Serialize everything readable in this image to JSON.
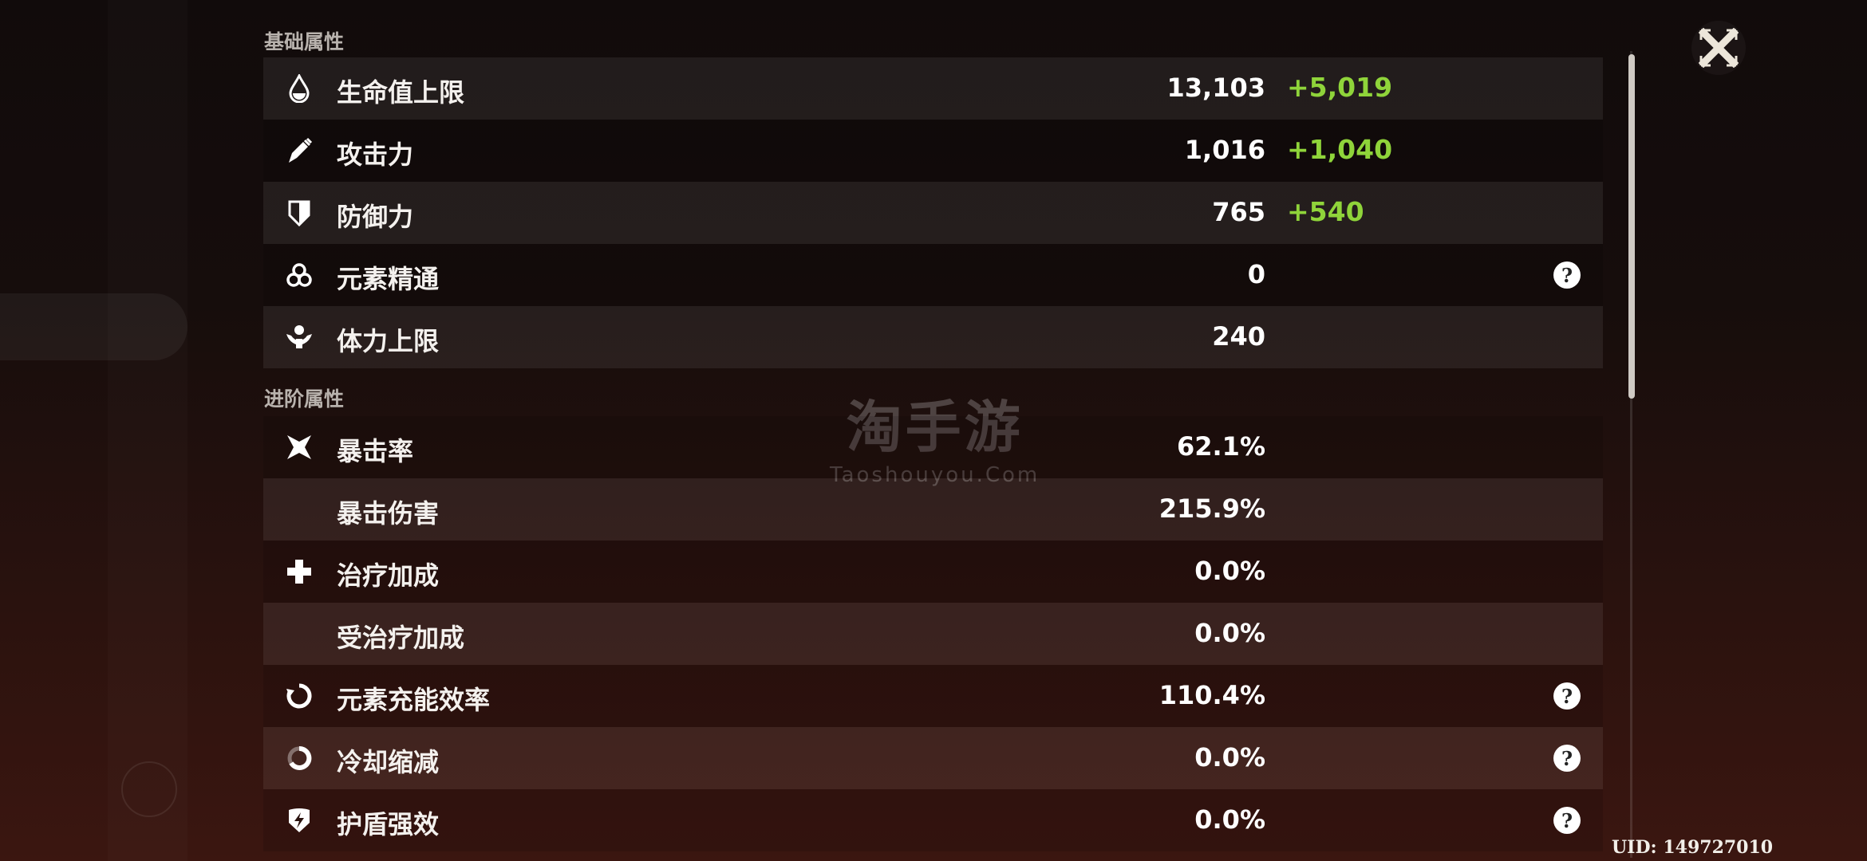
{
  "sections": [
    {
      "title": "基础属性",
      "rows": [
        {
          "icon": "hp-droplet-icon",
          "label": "生命值上限",
          "value": "13,103",
          "bonus": "+5,019",
          "help": false
        },
        {
          "icon": "sword-icon",
          "label": "攻击力",
          "value": "1,016",
          "bonus": "+1,040",
          "help": false
        },
        {
          "icon": "shield-icon",
          "label": "防御力",
          "value": "765",
          "bonus": "+540",
          "help": false
        },
        {
          "icon": "elemental-mastery-icon",
          "label": "元素精通",
          "value": "0",
          "bonus": "",
          "help": true
        },
        {
          "icon": "stamina-icon",
          "label": "体力上限",
          "value": "240",
          "bonus": "",
          "help": false
        }
      ]
    },
    {
      "title": "进阶属性",
      "rows": [
        {
          "icon": "crit-star-icon",
          "label": "暴击率",
          "value": "62.1%",
          "bonus": "",
          "help": false
        },
        {
          "icon": "",
          "label": "暴击伤害",
          "value": "215.9%",
          "bonus": "",
          "help": false
        },
        {
          "icon": "healing-cross-icon",
          "label": "治疗加成",
          "value": "0.0%",
          "bonus": "",
          "help": false
        },
        {
          "icon": "",
          "label": "受治疗加成",
          "value": "0.0%",
          "bonus": "",
          "help": false
        },
        {
          "icon": "energy-recharge-icon",
          "label": "元素充能效率",
          "value": "110.4%",
          "bonus": "",
          "help": true
        },
        {
          "icon": "cooldown-icon",
          "label": "冷却缩减",
          "value": "0.0%",
          "bonus": "",
          "help": true
        },
        {
          "icon": "shield-strength-icon",
          "label": "护盾强效",
          "value": "0.0%",
          "bonus": "",
          "help": true
        }
      ]
    }
  ],
  "help_glyph": "?",
  "uid": "UID: 149727010",
  "watermark": {
    "title": "淘手游",
    "url": "Taoshouyou.Com"
  },
  "colors": {
    "bonus": "#8fd43a",
    "text": "#ffffff",
    "section": "#b8b2ad"
  }
}
